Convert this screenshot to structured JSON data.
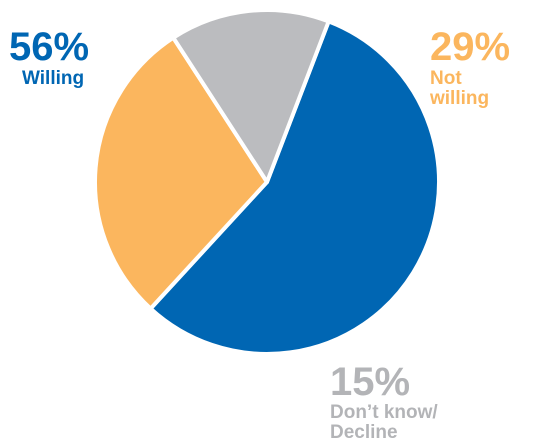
{
  "chart_data": {
    "type": "pie",
    "title": "",
    "slices": [
      {
        "label": "Willing",
        "label_lines": "Willing",
        "value": 56,
        "value_text": "56%",
        "color": "#0066b3"
      },
      {
        "label": "Not willing",
        "label_lines": "Not\nwilling",
        "value": 29,
        "value_text": "29%",
        "color": "#fbb65e"
      },
      {
        "label": "Don't know/ Decline",
        "label_lines": "Don’t know/\nDecline",
        "value": 15,
        "value_text": "15%",
        "color": "#bbbcbf"
      }
    ],
    "start_angle_deg": 21,
    "direction": "clockwise",
    "separator_color": "#ffffff",
    "legend": "none"
  }
}
